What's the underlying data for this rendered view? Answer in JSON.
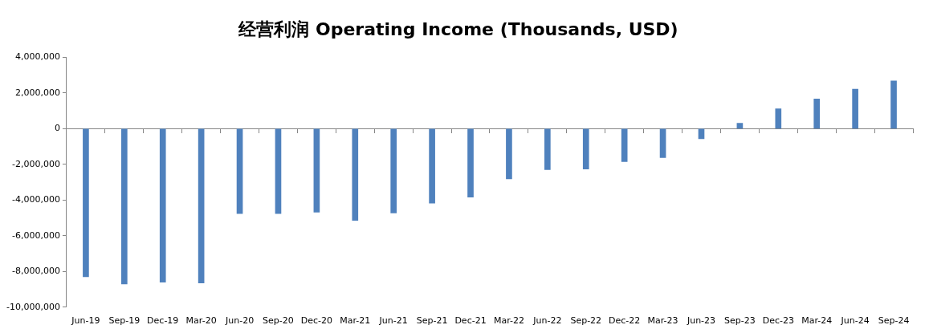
{
  "chart_data": {
    "type": "bar",
    "title": "经营利润 Operating Income (Thousands, USD)",
    "categories": [
      "Jun-19",
      "Sep-19",
      "Dec-19",
      "Mar-20",
      "Jun-20",
      "Sep-20",
      "Dec-20",
      "Mar-21",
      "Jun-21",
      "Sep-21",
      "Dec-21",
      "Mar-22",
      "Jun-22",
      "Sep-22",
      "Dec-22",
      "Mar-23",
      "Jun-23",
      "Sep-23",
      "Dec-23",
      "Mar-24",
      "Jun-24",
      "Sep-24"
    ],
    "values": [
      -8300000,
      -8700000,
      -8600000,
      -8650000,
      -4760000,
      -4760000,
      -4680000,
      -5140000,
      -4720000,
      -4170000,
      -3830000,
      -2810000,
      -2300000,
      -2260000,
      -1840000,
      -1620000,
      -560000,
      310000,
      1120000,
      1670000,
      2220000,
      2680000
    ],
    "color": "#4f81bd",
    "ylim": [
      -10000000,
      4000000
    ],
    "yticks": [
      {
        "value": -10000000,
        "label": "-10,000,000"
      },
      {
        "value": -8000000,
        "label": "-8,000,000"
      },
      {
        "value": -6000000,
        "label": "-6,000,000"
      },
      {
        "value": -4000000,
        "label": "-4,000,000"
      },
      {
        "value": -2000000,
        "label": "-2,000,000"
      },
      0,
      {
        "value": 2000000,
        "label": "2,000,000"
      },
      {
        "value": 4000000,
        "label": "4,000,000"
      }
    ],
    "legend": false
  }
}
